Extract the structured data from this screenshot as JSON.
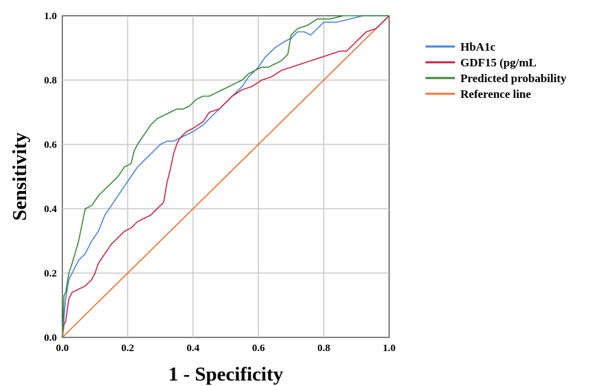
{
  "chart_data": {
    "type": "line",
    "title": "",
    "xlabel": "1 - Specificity",
    "ylabel": "Sensitivity",
    "xlim": [
      0,
      1
    ],
    "ylim": [
      0,
      1
    ],
    "xticks": [
      "0.0",
      "0.2",
      "0.4",
      "0.6",
      "0.8",
      "1.0"
    ],
    "yticks": [
      "0.0",
      "0.2",
      "0.4",
      "0.6",
      "0.8",
      "1.0"
    ],
    "grid": true,
    "legend_position": "right",
    "series": [
      {
        "name": "HbA1c",
        "color": "#4a86d6",
        "x": [
          0,
          0.01,
          0.02,
          0.03,
          0.05,
          0.07,
          0.09,
          0.11,
          0.13,
          0.15,
          0.17,
          0.19,
          0.21,
          0.23,
          0.25,
          0.28,
          0.3,
          0.32,
          0.34,
          0.36,
          0.38,
          0.4,
          0.43,
          0.45,
          0.48,
          0.5,
          0.52,
          0.55,
          0.57,
          0.6,
          0.62,
          0.65,
          0.68,
          0.7,
          0.72,
          0.74,
          0.76,
          0.78,
          0.8,
          0.84,
          0.88,
          0.92,
          0.96,
          1.0
        ],
        "y": [
          0,
          0.12,
          0.18,
          0.2,
          0.24,
          0.26,
          0.3,
          0.33,
          0.38,
          0.41,
          0.44,
          0.47,
          0.5,
          0.53,
          0.55,
          0.58,
          0.6,
          0.61,
          0.61,
          0.62,
          0.63,
          0.64,
          0.66,
          0.68,
          0.71,
          0.73,
          0.75,
          0.78,
          0.81,
          0.84,
          0.87,
          0.9,
          0.92,
          0.93,
          0.95,
          0.95,
          0.94,
          0.96,
          0.98,
          0.98,
          0.99,
          1.0,
          1.0,
          1.0
        ]
      },
      {
        "name": "GDF15 (pg/mL",
        "color": "#c8264a",
        "x": [
          0,
          0.005,
          0.01,
          0.02,
          0.03,
          0.05,
          0.07,
          0.09,
          0.1,
          0.11,
          0.13,
          0.15,
          0.17,
          0.19,
          0.21,
          0.23,
          0.25,
          0.27,
          0.29,
          0.31,
          0.32,
          0.33,
          0.34,
          0.35,
          0.36,
          0.38,
          0.4,
          0.43,
          0.45,
          0.48,
          0.5,
          0.52,
          0.55,
          0.58,
          0.61,
          0.64,
          0.67,
          0.7,
          0.73,
          0.76,
          0.79,
          0.82,
          0.85,
          0.87,
          0.88,
          0.9,
          0.93,
          0.96,
          0.98,
          1.0
        ],
        "y": [
          0,
          0.04,
          0.05,
          0.12,
          0.14,
          0.15,
          0.16,
          0.18,
          0.2,
          0.23,
          0.26,
          0.29,
          0.31,
          0.33,
          0.34,
          0.36,
          0.37,
          0.38,
          0.4,
          0.42,
          0.48,
          0.52,
          0.57,
          0.6,
          0.62,
          0.64,
          0.65,
          0.67,
          0.7,
          0.71,
          0.73,
          0.75,
          0.77,
          0.78,
          0.8,
          0.81,
          0.83,
          0.84,
          0.85,
          0.86,
          0.87,
          0.88,
          0.89,
          0.89,
          0.9,
          0.92,
          0.95,
          0.96,
          0.98,
          1.0
        ]
      },
      {
        "name": "Predicted probability",
        "color": "#3a8a3a",
        "x": [
          0,
          0.005,
          0.01,
          0.02,
          0.03,
          0.05,
          0.06,
          0.07,
          0.09,
          0.11,
          0.13,
          0.15,
          0.17,
          0.19,
          0.21,
          0.22,
          0.23,
          0.25,
          0.27,
          0.29,
          0.31,
          0.33,
          0.35,
          0.37,
          0.39,
          0.41,
          0.43,
          0.45,
          0.47,
          0.49,
          0.51,
          0.53,
          0.55,
          0.57,
          0.59,
          0.61,
          0.63,
          0.65,
          0.67,
          0.69,
          0.7,
          0.72,
          0.75,
          0.78,
          0.82,
          0.86,
          0.9,
          0.95,
          1.0
        ],
        "y": [
          0,
          0.13,
          0.14,
          0.2,
          0.23,
          0.3,
          0.35,
          0.4,
          0.41,
          0.44,
          0.46,
          0.48,
          0.5,
          0.53,
          0.54,
          0.58,
          0.6,
          0.63,
          0.66,
          0.68,
          0.69,
          0.7,
          0.71,
          0.71,
          0.72,
          0.74,
          0.75,
          0.75,
          0.76,
          0.77,
          0.78,
          0.79,
          0.8,
          0.82,
          0.83,
          0.84,
          0.84,
          0.85,
          0.86,
          0.88,
          0.94,
          0.96,
          0.97,
          0.99,
          0.99,
          1.0,
          1.0,
          1.0,
          1.0
        ]
      },
      {
        "name": "Reference line",
        "color": "#ea7b3c",
        "x": [
          0,
          1
        ],
        "y": [
          0,
          1
        ]
      }
    ]
  }
}
